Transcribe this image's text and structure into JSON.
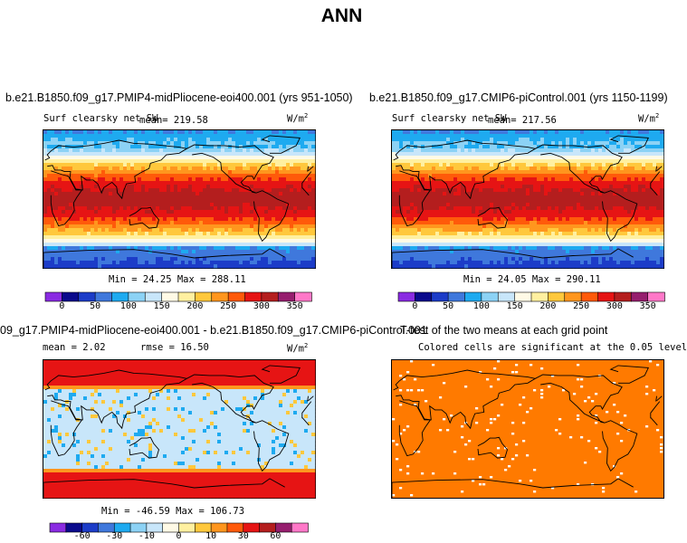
{
  "title": "ANN",
  "panels": {
    "p1": {
      "case": "b.e21.B1850.f09_g17.PMIP4-midPliocene-eoi400.001 (yrs 951-1050)",
      "variable": "Surf clearsky net SW",
      "mean": "mean= 219.58",
      "units": "W/m",
      "units_exp": "2",
      "minmax": "Min =  24.25 Max = 288.11"
    },
    "p2": {
      "case": "b.e21.B1850.f09_g17.CMIP6-piControl.001 (yrs 1150-1199)",
      "variable": "Surf clearsky net SW",
      "mean": "mean= 217.56",
      "units": "W/m",
      "units_exp": "2",
      "minmax": "Min =  24.05 Max = 290.11"
    },
    "p3": {
      "case": "09_g17.PMIP4-midPliocene-eoi400.001 - b.e21.B1850.f09_g17.CMIP6-piControl.001",
      "mean": "mean =   2.02",
      "rmse": "rmse =   16.50",
      "units": "W/m",
      "units_exp": "2",
      "minmax": "Min = -46.59 Max = 106.73"
    },
    "p4": {
      "title": "T-test of the two means at each grid point",
      "subtitle": "Colored cells are significant at the 0.05 level"
    }
  },
  "chart_data": [
    {
      "type": "heatmap",
      "title": "b.e21.B1850.f09_g17.PMIP4-midPliocene-eoi400.001 (yrs 951-1050)",
      "variable": "Surf clearsky net SW",
      "units": "W/m2",
      "mean": 219.58,
      "min": 24.25,
      "max": 288.11,
      "colorbar": {
        "levels": [
          0,
          25,
          50,
          75,
          100,
          125,
          150,
          175,
          200,
          225,
          250,
          275,
          300,
          325,
          350
        ],
        "tick_labels": [
          "0",
          "50",
          "100",
          "150",
          "200",
          "250",
          "300",
          "350"
        ],
        "colors": [
          "#8a2be2",
          "#0a0a8c",
          "#1c3cc8",
          "#3f78dc",
          "#1eaaf0",
          "#8cd2f5",
          "#c8e6fa",
          "#fffae6",
          "#fff0a0",
          "#ffc83c",
          "#ff961e",
          "#ff5a0a",
          "#e61414",
          "#b41e1e",
          "#961e6e",
          "#ff78c8"
        ]
      }
    },
    {
      "type": "heatmap",
      "title": "b.e21.B1850.f09_g17.CMIP6-piControl.001 (yrs 1150-1199)",
      "variable": "Surf clearsky net SW",
      "units": "W/m2",
      "mean": 217.56,
      "min": 24.05,
      "max": 290.11,
      "colorbar": {
        "levels": [
          0,
          25,
          50,
          75,
          100,
          125,
          150,
          175,
          200,
          225,
          250,
          275,
          300,
          325,
          350
        ],
        "tick_labels": [
          "0",
          "50",
          "100",
          "150",
          "200",
          "250",
          "300",
          "350"
        ],
        "colors": [
          "#8a2be2",
          "#0a0a8c",
          "#1c3cc8",
          "#3f78dc",
          "#1eaaf0",
          "#8cd2f5",
          "#c8e6fa",
          "#fffae6",
          "#fff0a0",
          "#ffc83c",
          "#ff961e",
          "#ff5a0a",
          "#e61414",
          "#b41e1e",
          "#961e6e",
          "#ff78c8"
        ]
      }
    },
    {
      "type": "heatmap",
      "title": "09_g17.PMIP4-midPliocene-eoi400.001 - b.e21.B1850.f09_g17.CMIP6-piControl.001",
      "units": "W/m2",
      "mean": 2.02,
      "rmse": 16.5,
      "min": -46.59,
      "max": 106.73,
      "colorbar": {
        "tick_labels": [
          "-60",
          "-30",
          "-10",
          "0",
          "10",
          "30",
          "60"
        ],
        "colors": [
          "#8a2be2",
          "#0a0a8c",
          "#1c3cc8",
          "#3f78dc",
          "#1eaaf0",
          "#8cd2f5",
          "#c8e6fa",
          "#fffae6",
          "#fff0a0",
          "#ffc83c",
          "#ff961e",
          "#ff5a0a",
          "#e61414",
          "#b41e1e",
          "#961e6e",
          "#ff78c8"
        ]
      }
    },
    {
      "type": "heatmap",
      "title": "T-test of the two means at each grid point",
      "subtitle": "Colored cells are significant at the 0.05 level",
      "significant_color": "#ff7a00"
    }
  ]
}
